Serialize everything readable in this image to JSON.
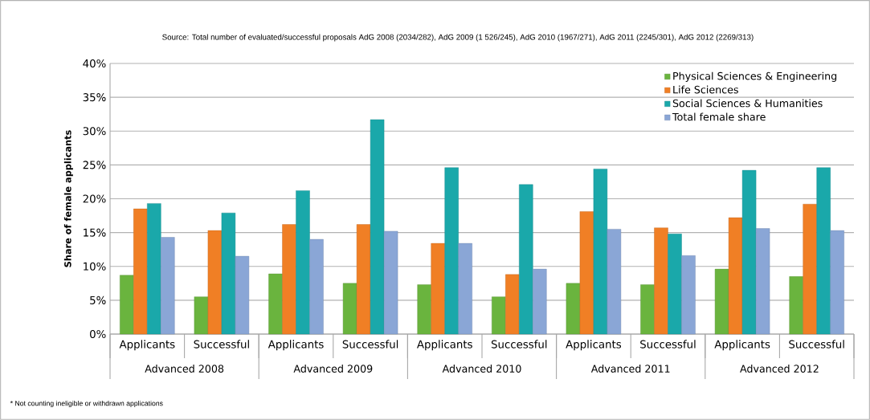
{
  "chart_data": {
    "type": "bar",
    "ylabel": "Share of female applicants",
    "categories": [
      "Applicants",
      "Successful",
      "Applicants",
      "Successful",
      "Applicants",
      "Successful",
      "Applicants",
      "Successful",
      "Applicants",
      "Successful"
    ],
    "series": [
      {
        "name": "Physical Sciences & Engineering",
        "color": "#6ab43e",
        "values": [
          8.7,
          5.5,
          8.9,
          7.5,
          7.3,
          5.5,
          7.5,
          7.3,
          9.6,
          8.5
        ]
      },
      {
        "name": "Life Sciences",
        "color": "#f07f25",
        "values": [
          18.5,
          15.3,
          16.2,
          16.2,
          13.4,
          8.8,
          18.1,
          15.7,
          17.2,
          19.2
        ]
      },
      {
        "name": "Social Sciences & Humanities",
        "color": "#1aa8aa",
        "values": [
          19.3,
          17.9,
          21.2,
          31.7,
          24.6,
          22.1,
          24.4,
          14.8,
          24.2,
          24.6
        ]
      },
      {
        "name": "Total female share",
        "color": "#8aa6d6",
        "values": [
          14.3,
          11.5,
          14.0,
          15.2,
          13.4,
          9.6,
          15.5,
          11.6,
          15.6,
          15.3
        ]
      }
    ],
    "ylim": [
      0,
      40
    ],
    "yticks": [
      {
        "value": 0,
        "label": "0%"
      },
      {
        "value": 5,
        "label": "5%"
      },
      {
        "value": 10,
        "label": "10%"
      },
      {
        "value": 15,
        "label": "15%"
      },
      {
        "value": 20,
        "label": "20%"
      },
      {
        "value": 25,
        "label": "25%"
      },
      {
        "value": 30,
        "label": "30%"
      },
      {
        "value": 35,
        "label": "35%"
      },
      {
        "value": 40,
        "label": "40%"
      }
    ],
    "grid": "y",
    "legend": "top right",
    "annotations": [
      "Source: Total number of evaluated/successful proposals AdG 2008 (2034/282), AdG 2009 (1 526/245),  AdG 2010 (1967/271), AdG 2011 (2245/301), AdG 2012 (2269/313)",
      "* Not counting ineligible or withdrawn applications",
      "Advanced 2008",
      "Advanced 2009",
      "Advanced 2010",
      "Advanced 2011",
      "Advanced 2012"
    ]
  }
}
